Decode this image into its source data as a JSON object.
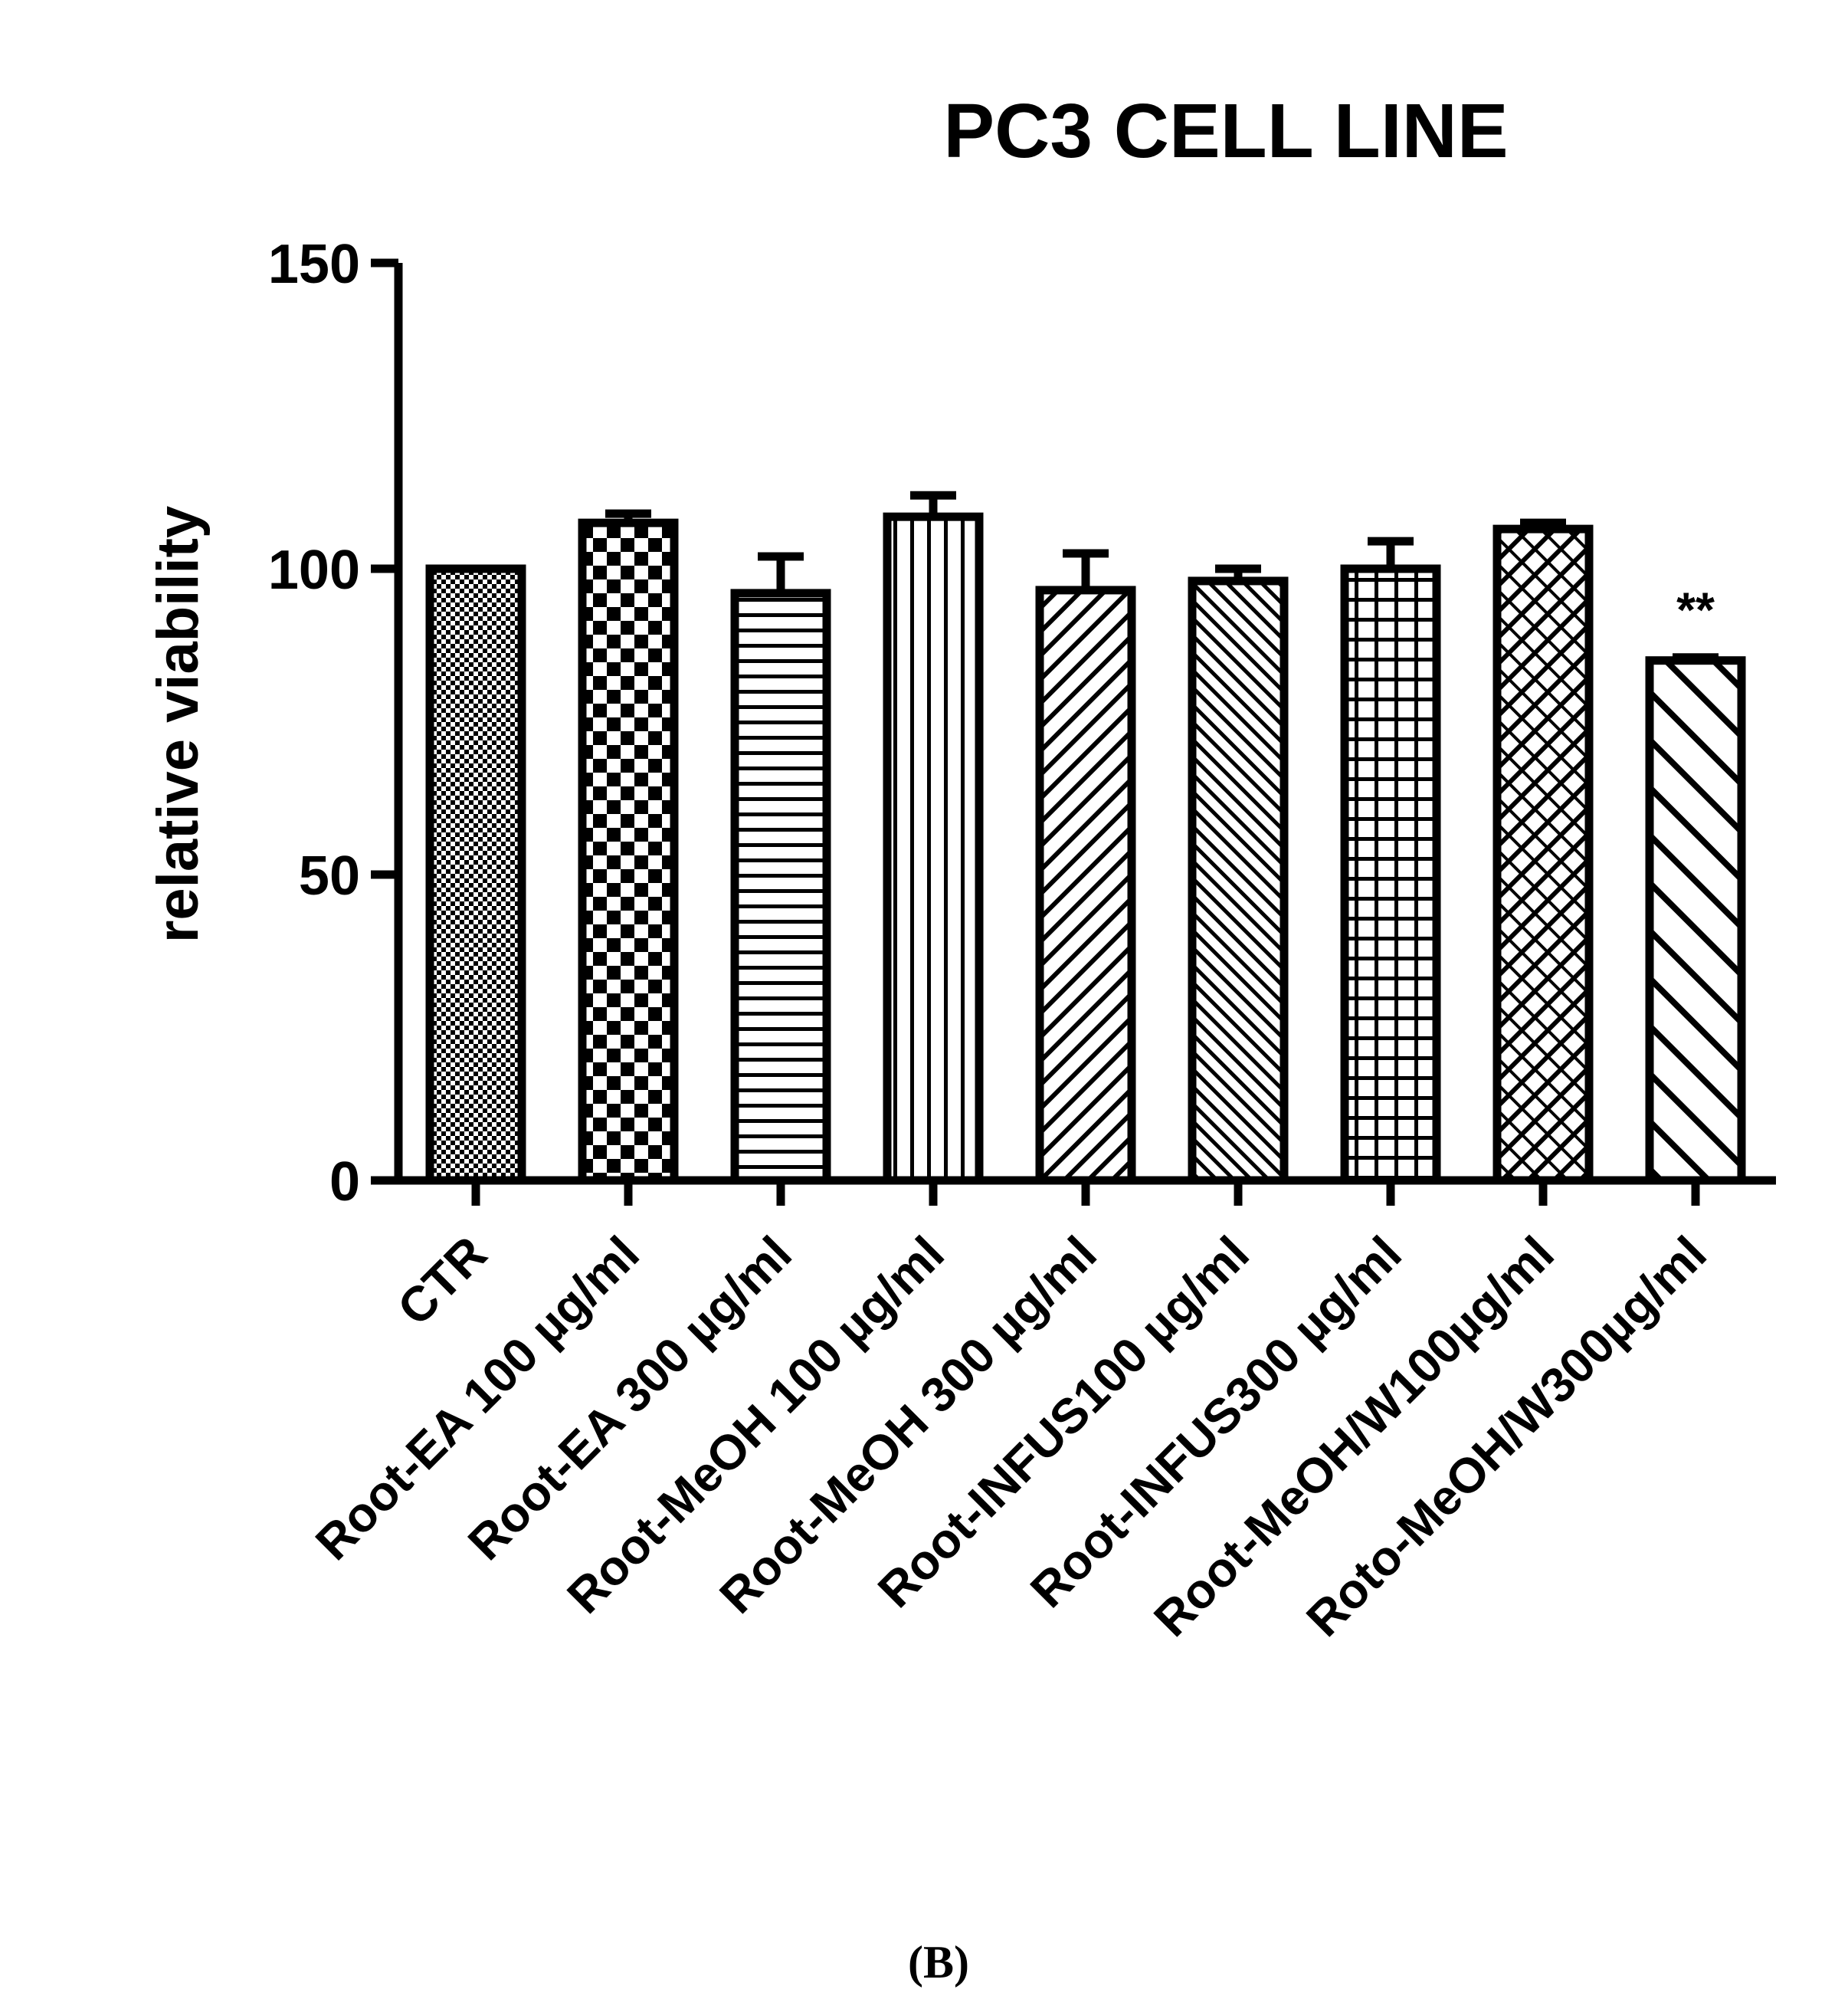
{
  "chart_data": {
    "type": "bar",
    "title": "PC3 CELL LINE",
    "xlabel": "",
    "ylabel": "relative viability",
    "ylim": [
      0,
      150
    ],
    "yticks": [
      0,
      50,
      100,
      150
    ],
    "categories": [
      "CTR",
      "Root-EA 100 µg/ml",
      "Root-EA 300 µg/ml",
      "Root-MeOH 100 µg/ml",
      "Root-MeOH 300 µg/ml",
      "Root-INFUS100 µg/ml",
      "Root-INFUS300 µg/ml",
      "Root-MeOH/W100µg/ml",
      "Roto-MeOH/W300µg/ml"
    ],
    "values": [
      100,
      107.5,
      96,
      108.5,
      96.5,
      98,
      100,
      106.5,
      85
    ],
    "errors": [
      0,
      1.5,
      6,
      3.5,
      6,
      2,
      4.5,
      1,
      0.5
    ],
    "patterns": [
      "fine-check",
      "large-check",
      "horizontal",
      "vertical",
      "diag-right",
      "diag-left-dense",
      "grid",
      "crosshatch",
      "diag-left-wide"
    ],
    "annotations": [
      {
        "category_index": 8,
        "text": "**"
      }
    ],
    "grid": false,
    "legend": "none"
  },
  "caption": "(B)"
}
